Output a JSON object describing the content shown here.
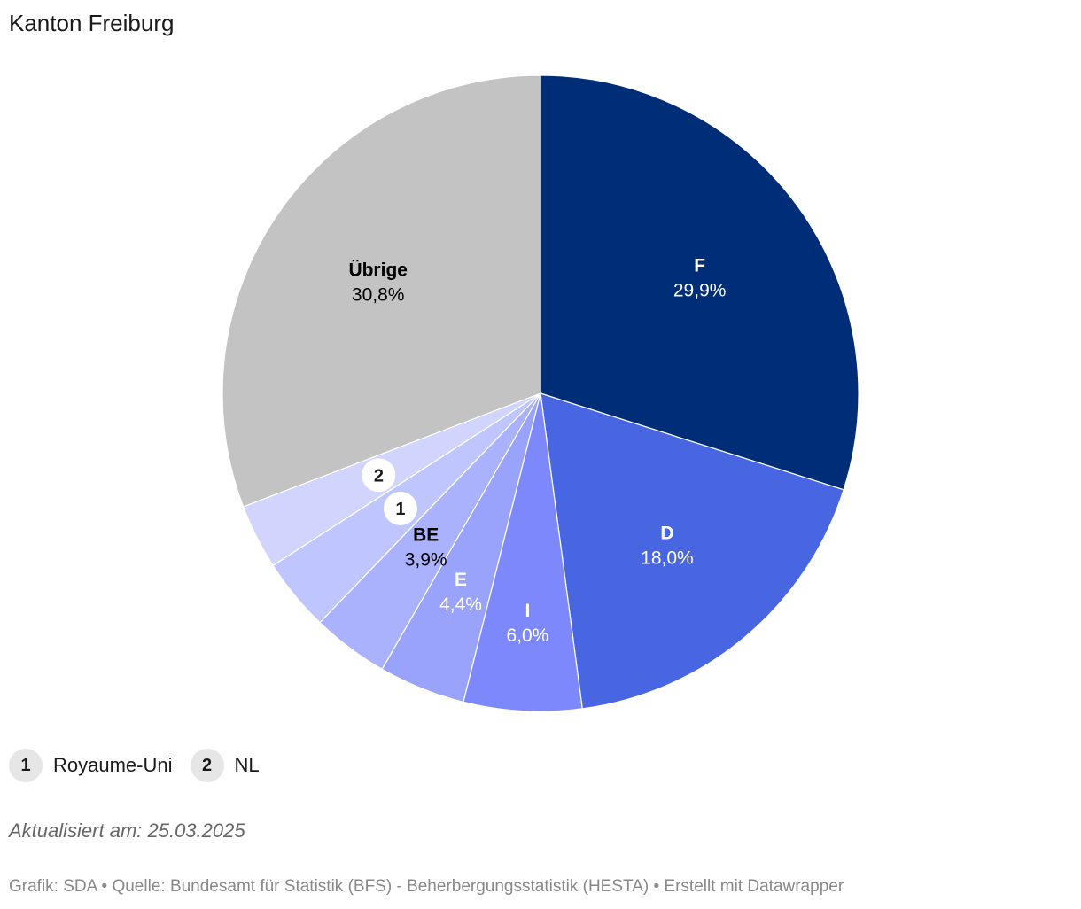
{
  "header": {
    "title": "Kanton Freiburg"
  },
  "chart_data": {
    "type": "pie",
    "slices": [
      {
        "label": "F",
        "value_text": "29,9%",
        "value": 29.9,
        "color": "#002d77",
        "label_color": "#ffffff",
        "badge": ""
      },
      {
        "label": "D",
        "value_text": "18,0%",
        "value": 18.0,
        "color": "#4866e2",
        "label_color": "#ffffff",
        "badge": ""
      },
      {
        "label": "I",
        "value_text": "6,0%",
        "value": 6.0,
        "color": "#7c88fb",
        "label_color": "#ffffff",
        "badge": ""
      },
      {
        "label": "E",
        "value_text": "4,4%",
        "value": 4.4,
        "color": "#9aa3fc",
        "label_color": "#ffffff",
        "badge": ""
      },
      {
        "label": "BE",
        "value_text": "3,9%",
        "value": 3.9,
        "color": "#abb2fd",
        "label_color": "#000000",
        "badge": ""
      },
      {
        "label": "",
        "value_text": "",
        "value": 3.7,
        "color": "#bfc5fe",
        "label_color": "#000000",
        "badge": "1"
      },
      {
        "label": "",
        "value_text": "",
        "value": 3.3,
        "color": "#d1d5fe",
        "label_color": "#000000",
        "badge": "2"
      },
      {
        "label": "Übrige",
        "value_text": "30,8%",
        "value": 30.8,
        "color": "#c3c3c3",
        "label_color": "#000000",
        "badge": ""
      }
    ]
  },
  "legend": [
    {
      "badge": "1",
      "label": "Royaume-Uni"
    },
    {
      "badge": "2",
      "label": "NL"
    }
  ],
  "updated": "Aktualisiert am: 25.03.2025",
  "footer": {
    "text": "Grafik: SDA • Quelle: Bundesamt für Statistik (BFS) - Beherbergungsstatistik (HESTA) • Erstellt mit Datawrapper"
  }
}
